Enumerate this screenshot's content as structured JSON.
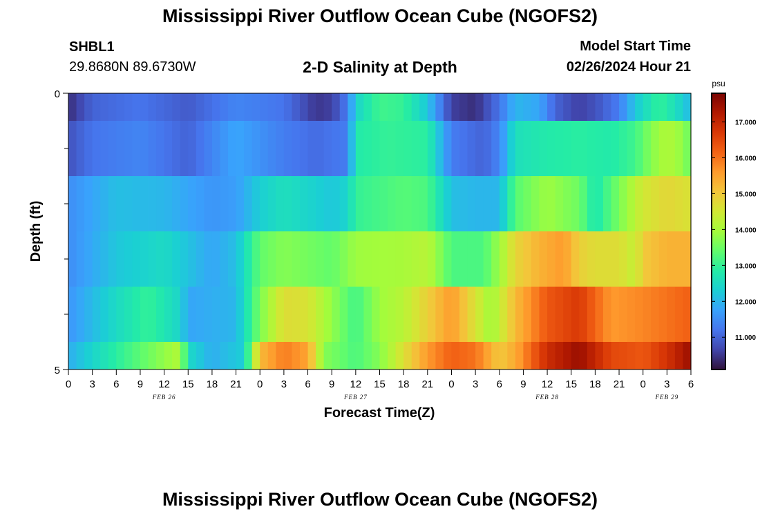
{
  "page": {
    "title_top": "Mississippi River Outflow Ocean Cube (NGOFS2)",
    "title_bottom": "Mississippi River Outflow Ocean Cube (NGOFS2)",
    "station_id": "SHBL1",
    "station_coords": "29.8680N  89.6730W",
    "subtitle": "2-D Salinity at Depth",
    "model_start_label": "Model Start Time",
    "model_start_value": "02/26/2024 Hour 21"
  },
  "chart_data": {
    "type": "heatmap",
    "xlabel": "Forecast Time(Z)",
    "ylabel": "Depth (ft)",
    "y_ticks": [
      "0",
      "5"
    ],
    "ylim": [
      0,
      5
    ],
    "x_ticks": [
      "0",
      "3",
      "6",
      "9",
      "12",
      "15",
      "18",
      "21",
      "0",
      "3",
      "6",
      "9",
      "12",
      "15",
      "18",
      "21",
      "0",
      "3",
      "6",
      "9",
      "12",
      "15",
      "18",
      "21",
      "0",
      "3",
      "6"
    ],
    "xlim_hours": [
      0,
      78
    ],
    "date_labels": [
      {
        "label": "FEB 26",
        "hour": 12
      },
      {
        "label": "FEB 27",
        "hour": 36
      },
      {
        "label": "FEB 28",
        "hour": 60
      },
      {
        "label": "FEB 29",
        "hour": 75
      }
    ],
    "layers_ft": [
      [
        0,
        0.5
      ],
      [
        0.5,
        1.5
      ],
      [
        1.5,
        2.5
      ],
      [
        2.5,
        3.5
      ],
      [
        3.5,
        4.5
      ],
      [
        4.5,
        5
      ]
    ],
    "colorbar": {
      "unit": "psu",
      "min": 10.1,
      "max": 17.8,
      "ticks": [
        "11.000",
        "12.000",
        "13.000",
        "14.000",
        "15.000",
        "16.000",
        "17.000"
      ],
      "colors": [
        "#30123b",
        "#4145ab",
        "#4675ed",
        "#39a2fc",
        "#1bcfd4",
        "#24eca6",
        "#61fc6c",
        "#a4fc3b",
        "#d1e834",
        "#f3c63a",
        "#fe9b2d",
        "#f36315",
        "#d93806",
        "#b11901",
        "#7a0402"
      ]
    },
    "salinity_keyframes": [
      [
        [
          0,
          10.4
        ],
        [
          3,
          11.0
        ],
        [
          9,
          11.2
        ],
        [
          15,
          10.9
        ],
        [
          21,
          11.4
        ],
        [
          27,
          11.2
        ],
        [
          31,
          10.5
        ],
        [
          33,
          10.6
        ],
        [
          35,
          11.3
        ],
        [
          36,
          12.4
        ],
        [
          39,
          13.1
        ],
        [
          42,
          13.0
        ],
        [
          45,
          12.2
        ],
        [
          48,
          10.6
        ],
        [
          51,
          10.4
        ],
        [
          54,
          11.2
        ],
        [
          56,
          12.0
        ],
        [
          59,
          11.8
        ],
        [
          61,
          11.0
        ],
        [
          64,
          10.6
        ],
        [
          66,
          10.8
        ],
        [
          69,
          11.3
        ],
        [
          71,
          12.2
        ],
        [
          74,
          13.0
        ],
        [
          76,
          12.6
        ],
        [
          78,
          12.0
        ]
      ],
      [
        [
          0,
          10.8
        ],
        [
          3,
          11.2
        ],
        [
          9,
          11.4
        ],
        [
          15,
          11.0
        ],
        [
          21,
          11.8
        ],
        [
          27,
          11.3
        ],
        [
          31,
          11.1
        ],
        [
          35,
          11.3
        ],
        [
          36,
          12.8
        ],
        [
          40,
          13.0
        ],
        [
          45,
          12.9
        ],
        [
          48,
          11.3
        ],
        [
          52,
          11.0
        ],
        [
          54,
          11.4
        ],
        [
          56,
          12.6
        ],
        [
          60,
          12.8
        ],
        [
          64,
          12.9
        ],
        [
          68,
          12.8
        ],
        [
          71,
          13.1
        ],
        [
          73,
          13.7
        ],
        [
          75,
          14.1
        ],
        [
          77,
          13.8
        ],
        [
          78,
          13.4
        ]
      ],
      [
        [
          0,
          11.5
        ],
        [
          6,
          12.1
        ],
        [
          12,
          12.0
        ],
        [
          18,
          11.6
        ],
        [
          21,
          11.7
        ],
        [
          24,
          12.3
        ],
        [
          27,
          12.6
        ],
        [
          33,
          12.2
        ],
        [
          35,
          12.4
        ],
        [
          36,
          13.0
        ],
        [
          42,
          13.3
        ],
        [
          45,
          13.2
        ],
        [
          48,
          12.1
        ],
        [
          51,
          12.0
        ],
        [
          54,
          12.0
        ],
        [
          56,
          13.3
        ],
        [
          60,
          13.9
        ],
        [
          64,
          13.5
        ],
        [
          66,
          12.7
        ],
        [
          69,
          13.6
        ],
        [
          72,
          14.5
        ],
        [
          75,
          14.8
        ],
        [
          78,
          14.6
        ]
      ],
      [
        [
          0,
          11.5
        ],
        [
          6,
          12.2
        ],
        [
          12,
          12.5
        ],
        [
          18,
          11.8
        ],
        [
          21,
          12.1
        ],
        [
          24,
          13.4
        ],
        [
          27,
          13.7
        ],
        [
          33,
          13.4
        ],
        [
          36,
          13.9
        ],
        [
          42,
          14.0
        ],
        [
          45,
          14.2
        ],
        [
          48,
          13.2
        ],
        [
          52,
          13.2
        ],
        [
          54,
          13.9
        ],
        [
          56,
          14.8
        ],
        [
          59,
          15.3
        ],
        [
          62,
          15.6
        ],
        [
          64,
          14.9
        ],
        [
          66,
          14.7
        ],
        [
          69,
          14.7
        ],
        [
          71,
          14.3
        ],
        [
          72,
          15.0
        ],
        [
          75,
          15.3
        ],
        [
          78,
          15.3
        ]
      ],
      [
        [
          0,
          11.6
        ],
        [
          6,
          12.5
        ],
        [
          10,
          13.0
        ],
        [
          14,
          12.4
        ],
        [
          15,
          11.8
        ],
        [
          21,
          12.0
        ],
        [
          24,
          13.6
        ],
        [
          27,
          14.7
        ],
        [
          30,
          14.6
        ],
        [
          33,
          13.8
        ],
        [
          36,
          13.1
        ],
        [
          39,
          13.9
        ],
        [
          42,
          14.2
        ],
        [
          45,
          14.9
        ],
        [
          48,
          15.6
        ],
        [
          51,
          14.6
        ],
        [
          53,
          13.9
        ],
        [
          56,
          15.2
        ],
        [
          60,
          16.3
        ],
        [
          64,
          16.7
        ],
        [
          68,
          15.6
        ],
        [
          72,
          15.8
        ],
        [
          75,
          16.0
        ],
        [
          78,
          16.2
        ]
      ],
      [
        [
          0,
          11.9
        ],
        [
          6,
          12.9
        ],
        [
          10,
          13.5
        ],
        [
          14,
          14.1
        ],
        [
          15,
          12.5
        ],
        [
          18,
          11.9
        ],
        [
          22,
          12.3
        ],
        [
          24,
          15.2
        ],
        [
          27,
          15.9
        ],
        [
          30,
          15.5
        ],
        [
          32,
          13.7
        ],
        [
          36,
          13.2
        ],
        [
          39,
          13.7
        ],
        [
          45,
          15.6
        ],
        [
          48,
          16.2
        ],
        [
          51,
          16.0
        ],
        [
          54,
          15.0
        ],
        [
          56,
          15.4
        ],
        [
          60,
          16.9
        ],
        [
          64,
          17.5
        ],
        [
          68,
          16.5
        ],
        [
          72,
          16.3
        ],
        [
          75,
          16.8
        ],
        [
          78,
          17.5
        ]
      ]
    ]
  }
}
